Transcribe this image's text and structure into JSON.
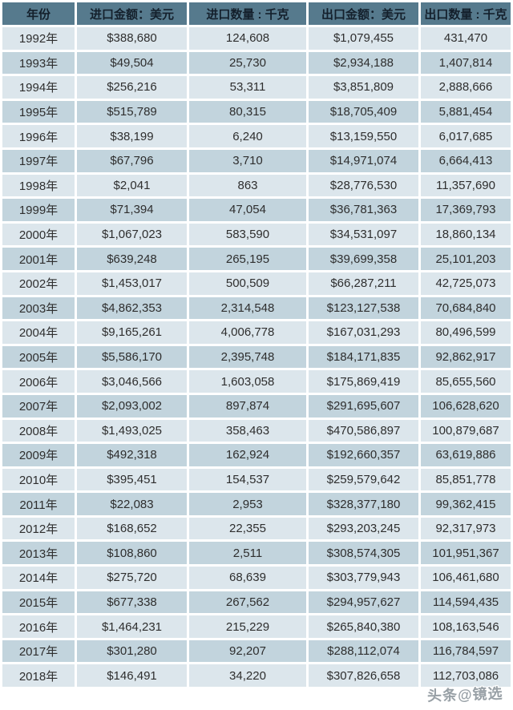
{
  "chart_data": {
    "type": "table",
    "columns": [
      "年份",
      "进口金额：美元",
      "进口数量 : 千克",
      "出口金额：美元",
      "出口数量 : 千克"
    ],
    "rows": [
      [
        "1992年",
        "$388,680",
        "124,608",
        "$1,079,455",
        "431,470"
      ],
      [
        "1993年",
        "$49,504",
        "25,730",
        "$2,934,188",
        "1,407,814"
      ],
      [
        "1994年",
        "$256,216",
        "53,311",
        "$3,851,809",
        "2,888,666"
      ],
      [
        "1995年",
        "$515,789",
        "80,315",
        "$18,705,409",
        "5,881,454"
      ],
      [
        "1996年",
        "$38,199",
        "6,240",
        "$13,159,550",
        "6,017,685"
      ],
      [
        "1997年",
        "$67,796",
        "3,710",
        "$14,971,074",
        "6,664,413"
      ],
      [
        "1998年",
        "$2,041",
        "863",
        "$28,776,530",
        "11,357,690"
      ],
      [
        "1999年",
        "$71,394",
        "47,054",
        "$36,781,363",
        "17,369,793"
      ],
      [
        "2000年",
        "$1,067,023",
        "583,590",
        "$34,531,097",
        "18,860,134"
      ],
      [
        "2001年",
        "$639,248",
        "265,195",
        "$39,699,358",
        "25,101,203"
      ],
      [
        "2002年",
        "$1,453,017",
        "500,509",
        "$66,287,211",
        "42,725,073"
      ],
      [
        "2003年",
        "$4,862,353",
        "2,314,548",
        "$123,127,538",
        "70,684,840"
      ],
      [
        "2004年",
        "$9,165,261",
        "4,006,778",
        "$167,031,293",
        "80,496,599"
      ],
      [
        "2005年",
        "$5,586,170",
        "2,395,748",
        "$184,171,835",
        "92,862,917"
      ],
      [
        "2006年",
        "$3,046,566",
        "1,603,058",
        "$175,869,419",
        "85,655,560"
      ],
      [
        "2007年",
        "$2,093,002",
        "897,874",
        "$291,695,607",
        "106,628,620"
      ],
      [
        "2008年",
        "$1,493,025",
        "358,463",
        "$470,586,897",
        "100,879,687"
      ],
      [
        "2009年",
        "$492,318",
        "162,924",
        "$192,660,357",
        "63,619,886"
      ],
      [
        "2010年",
        "$395,451",
        "154,537",
        "$259,579,642",
        "85,851,778"
      ],
      [
        "2011年",
        "$22,083",
        "2,953",
        "$328,377,180",
        "99,362,415"
      ],
      [
        "2012年",
        "$168,652",
        "22,355",
        "$293,203,245",
        "92,317,973"
      ],
      [
        "2013年",
        "$108,860",
        "2,511",
        "$308,574,305",
        "101,951,367"
      ],
      [
        "2014年",
        "$275,720",
        "68,639",
        "$303,779,943",
        "106,461,680"
      ],
      [
        "2015年",
        "$677,338",
        "267,562",
        "$294,957,627",
        "114,594,435"
      ],
      [
        "2016年",
        "$1,464,231",
        "215,229",
        "$265,840,380",
        "108,163,546"
      ],
      [
        "2017年",
        "$301,280",
        "92,207",
        "$288,112,074",
        "116,784,597"
      ],
      [
        "2018年",
        "$146,491",
        "34,220",
        "$307,826,658",
        "112,703,086"
      ]
    ],
    "title": "",
    "legend": null,
    "notes": "2018 export-quantity cell is partially obscured by a watermark"
  },
  "watermark": {
    "text": "头条@镜选"
  },
  "colors": {
    "header_bg": "#567a8d",
    "header_text": "#14202c",
    "row_light": "#dce6ec",
    "row_dark": "#c2d4dd",
    "separator": "#ffffff",
    "cell_text": "#2e2e2e",
    "watermark_text": "#98a0a6"
  }
}
